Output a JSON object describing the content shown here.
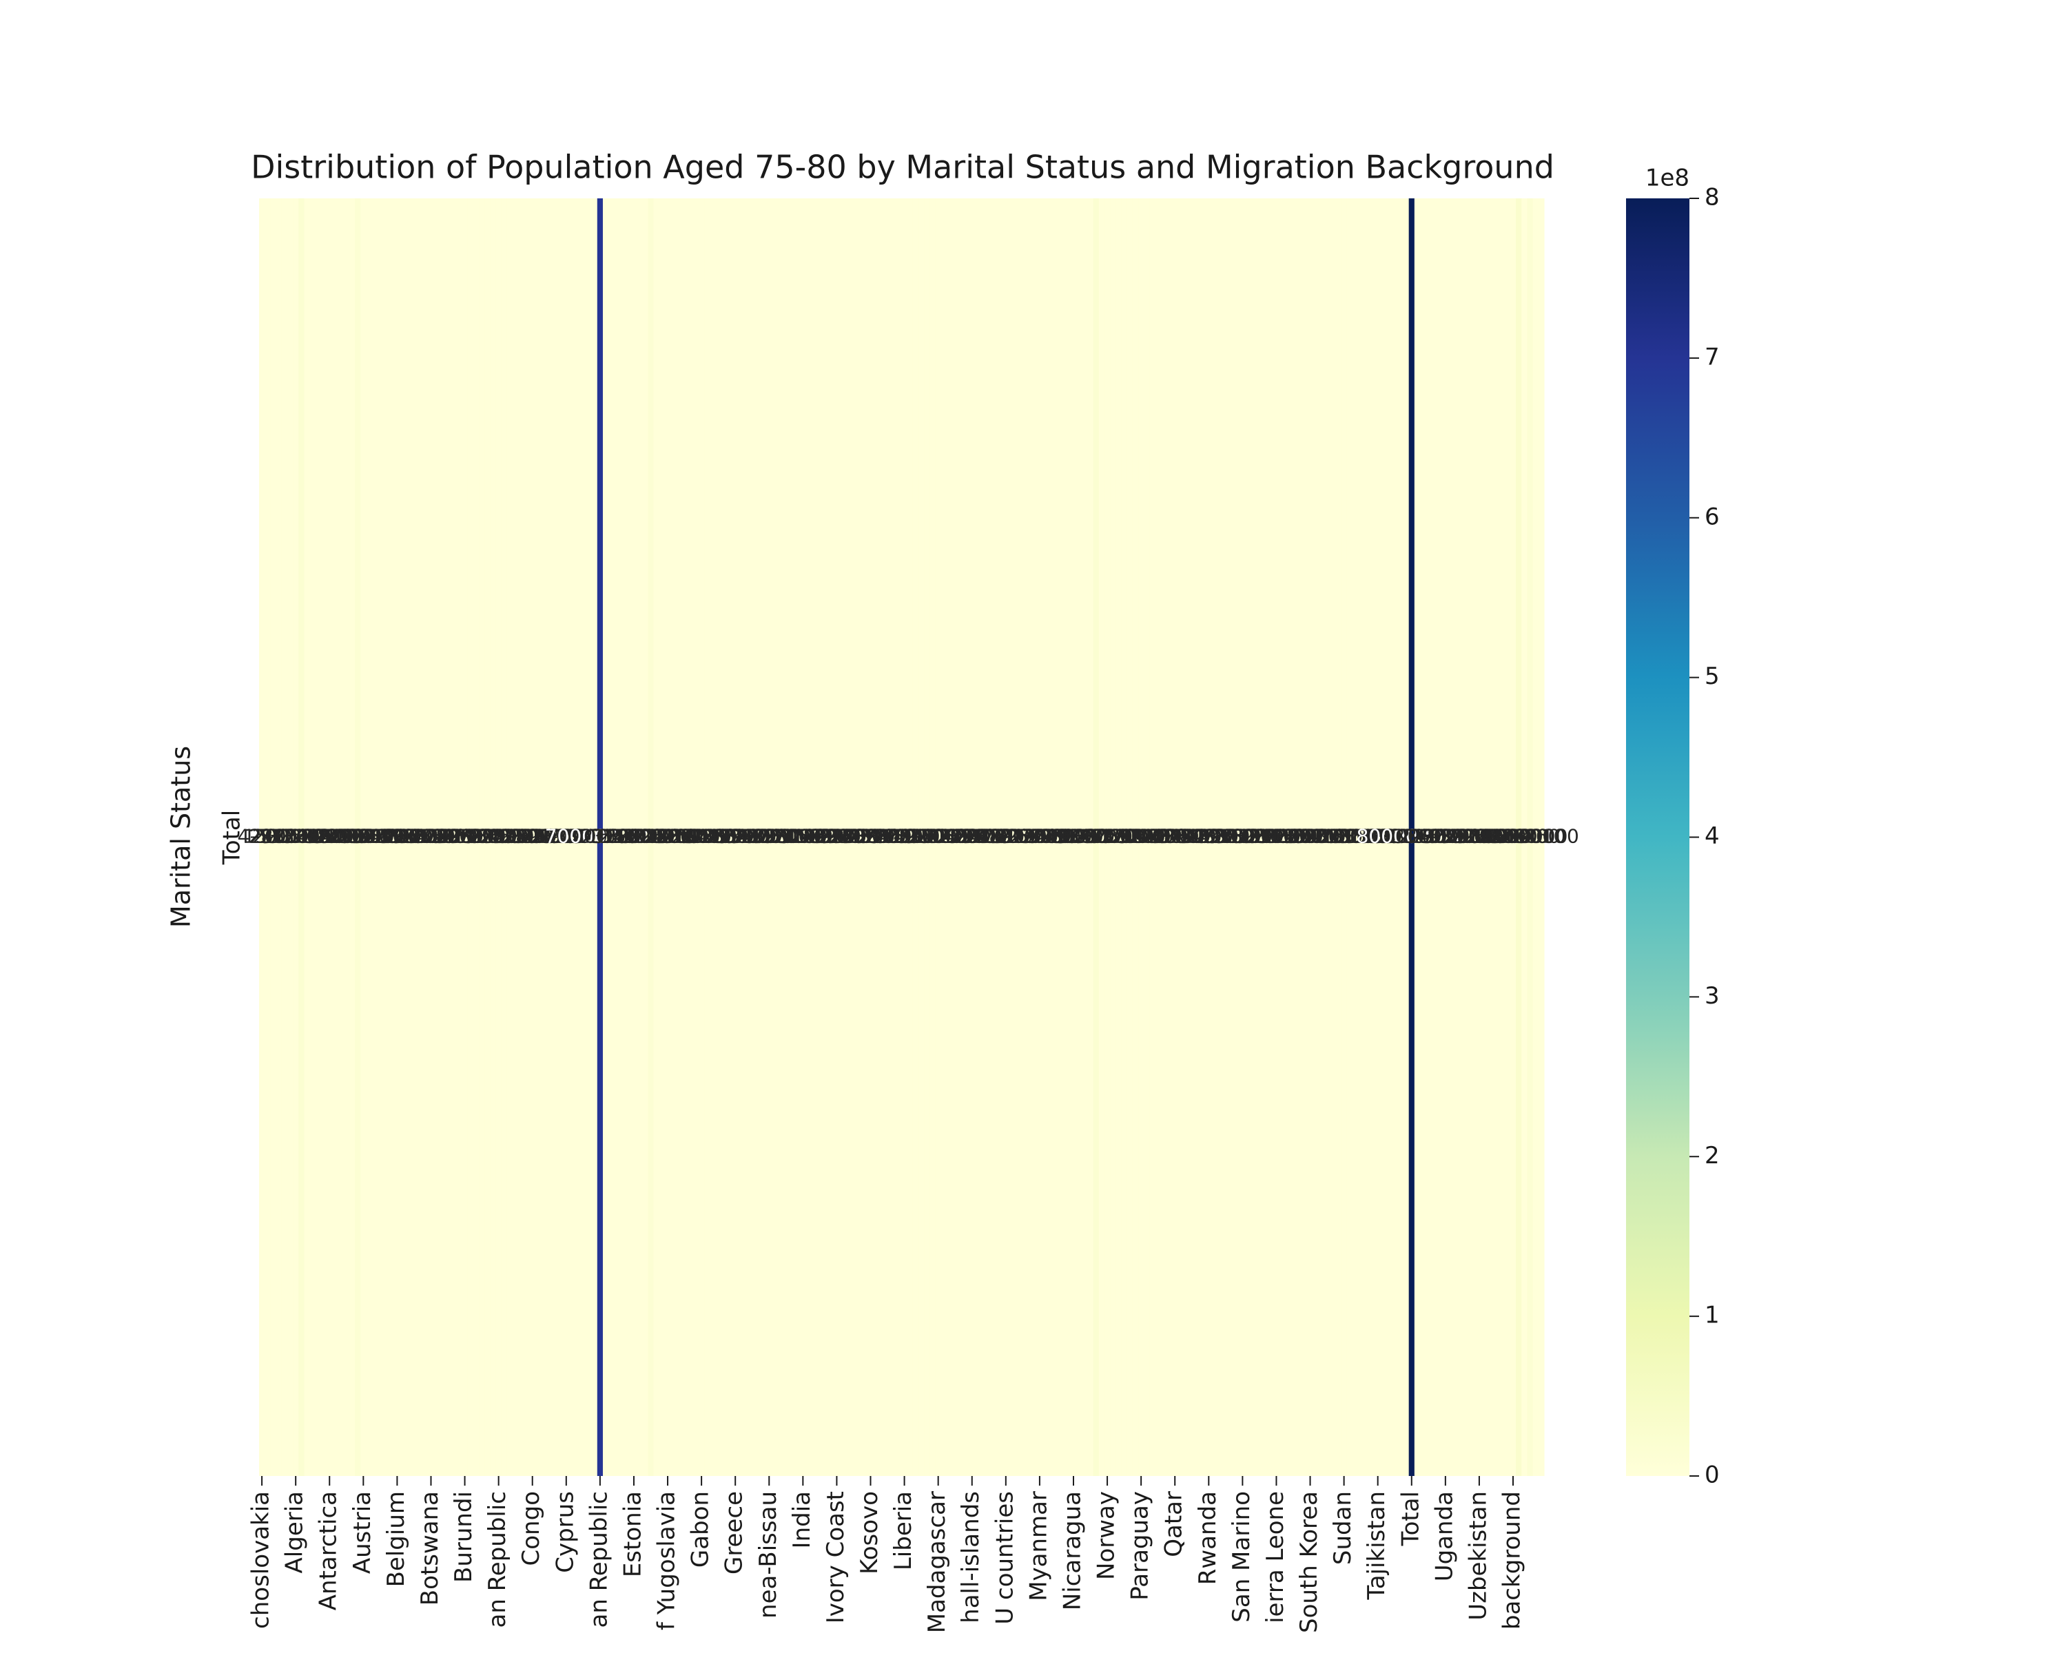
{
  "chart_data": {
    "type": "heatmap",
    "title": "Distribution of Population Aged 75-80 by Marital Status and Migration Background",
    "ylabel": "Marital Status",
    "colormap": "YlGnBu",
    "rows": [
      "Total"
    ],
    "columns": [
      "choslovakia",
      null,
      null,
      null,
      null,
      null,
      "Algeria",
      null,
      null,
      null,
      null,
      null,
      "Antarctica",
      null,
      null,
      null,
      null,
      null,
      "Austria",
      null,
      null,
      null,
      null,
      null,
      "Belgium",
      null,
      null,
      null,
      null,
      null,
      "Botswana",
      null,
      null,
      null,
      null,
      null,
      "Burundi",
      null,
      null,
      null,
      null,
      null,
      "an Republic",
      null,
      null,
      null,
      null,
      null,
      "Congo",
      null,
      null,
      null,
      null,
      null,
      "Cyprus",
      null,
      null,
      null,
      null,
      null,
      "an Republic",
      null,
      null,
      null,
      null,
      null,
      "Estonia",
      null,
      null,
      null,
      null,
      null,
      "f Yugoslavia",
      null,
      null,
      null,
      null,
      null,
      "Gabon",
      null,
      null,
      null,
      null,
      null,
      "Greece",
      null,
      null,
      null,
      null,
      null,
      "nea-Bissau",
      null,
      null,
      null,
      null,
      null,
      "India",
      null,
      null,
      null,
      null,
      null,
      "Ivory Coast",
      null,
      null,
      null,
      null,
      null,
      "Kosovo",
      null,
      null,
      null,
      null,
      null,
      "Liberia",
      null,
      null,
      null,
      null,
      null,
      "Madagascar",
      null,
      null,
      null,
      null,
      null,
      "hall-islands",
      null,
      null,
      null,
      null,
      null,
      "U countries",
      null,
      null,
      null,
      null,
      null,
      "Myanmar",
      null,
      null,
      null,
      null,
      null,
      "Nicaragua",
      null,
      null,
      null,
      null,
      null,
      "Norway",
      null,
      null,
      null,
      null,
      null,
      "Paraguay",
      null,
      null,
      null,
      null,
      null,
      "Qatar",
      null,
      null,
      null,
      null,
      null,
      "Rwanda",
      null,
      null,
      null,
      null,
      null,
      "San Marino",
      null,
      null,
      null,
      null,
      null,
      "ierra Leone",
      null,
      null,
      null,
      null,
      null,
      "South Korea",
      null,
      null,
      null,
      null,
      null,
      "Sudan",
      null,
      null,
      null,
      null,
      null,
      "Tajikistan",
      null,
      null,
      null,
      null,
      null,
      "Total",
      null,
      null,
      null,
      null,
      null,
      "Uganda",
      null,
      null,
      null,
      null,
      null,
      "Uzbekistan",
      null,
      null,
      null,
      null,
      null,
      "background",
      null,
      null,
      null,
      null,
      null
    ],
    "values": [
      [
        4210,
        1530,
        2870,
        980,
        3120,
        2250,
        1760,
        20000000,
        3410,
        1290,
        2680,
        1950,
        3870,
        1420,
        2560,
        1180,
        2930,
        15000000,
        1670,
        2340,
        3050,
        1510,
        2780,
        1890,
        1230,
        3320,
        2470,
        1840,
        2650,
        1370,
        3190,
        2020,
        1580,
        2890,
        1460,
        3260,
        2110,
        1720,
        2980,
        1390,
        3540,
        2240,
        1660,
        2810,
        1930,
        3380,
        1270,
        2590,
        1810,
        3070,
        2360,
        1490,
        2720,
        1610,
        3150,
        2090,
        1350,
        2940,
        1780,
        2430,
        700000000,
        2160,
        1540,
        3290,
        2520,
        1860,
        2750,
        1320,
        3010,
        15000000,
        2280,
        1690,
        2860,
        1410,
        3230,
        2190,
        1570,
        2640,
        1950,
        3110,
        1260,
        2470,
        1830,
        2990,
        1640,
        3350,
        2200,
        1480,
        2770,
        1920,
        3060,
        1380,
        2570,
        1710,
        2910,
        2050,
        3180,
        1560,
        2420,
        1890,
        2690,
        1330,
        3270,
        2140,
        1620,
        2830,
        1450,
        3020,
        2310,
        1740,
        2960,
        1360,
        3140,
        2080,
        1590,
        2710,
        1970,
        3300,
        1240,
        2500,
        1870,
        3040,
        2270,
        1520,
        2790,
        1680,
        3210,
        2010,
        1400,
        2880,
        1770,
        2390,
        2620,
        1310,
        3160,
        2120,
        1550,
        2740,
        1900,
        3080,
        1280,
        2490,
        1820,
        2970,
        1630,
        3340,
        2180,
        1470,
        20000000,
        1910,
        3050,
        1370,
        2550,
        1700,
        2920,
        2040,
        3170,
        1570,
        2410,
        1880,
        2680,
        1340,
        3280,
        2150,
        1610,
        2840,
        1440,
        3030,
        2320,
        1730,
        2950,
        1350,
        3130,
        2070,
        1600,
        2720,
        1960,
        3310,
        1250,
        2510,
        1860,
        3030,
        2260,
        1530,
        2800,
        1670,
        3200,
        2000,
        1410,
        2870,
        1760,
        2380,
        2630,
        1300,
        3150,
        2110,
        1560,
        2730,
        1890,
        3090,
        1290,
        2480,
        1810,
        2960,
        800000000,
        3360,
        2190,
        1460,
        2760,
        1930,
        3070,
        1390,
        2580,
        1720,
        2900,
        2060,
        3190,
        1550,
        2430,
        1900,
        2700,
        1320,
        3260,
        30000000,
        1620,
        15000000,
        1460,
        3010
      ]
    ],
    "colorbar": {
      "lim": [
        0,
        800000000
      ],
      "offset_label": "1e8",
      "ticks": [
        {
          "value": 0,
          "label": "0"
        },
        {
          "value": 100000000,
          "label": "1"
        },
        {
          "value": 200000000,
          "label": "2"
        },
        {
          "value": 300000000,
          "label": "3"
        },
        {
          "value": 400000000,
          "label": "4"
        },
        {
          "value": 500000000,
          "label": "5"
        },
        {
          "value": 600000000,
          "label": "6"
        },
        {
          "value": 700000000,
          "label": "7"
        },
        {
          "value": 800000000,
          "label": "8"
        }
      ]
    }
  }
}
